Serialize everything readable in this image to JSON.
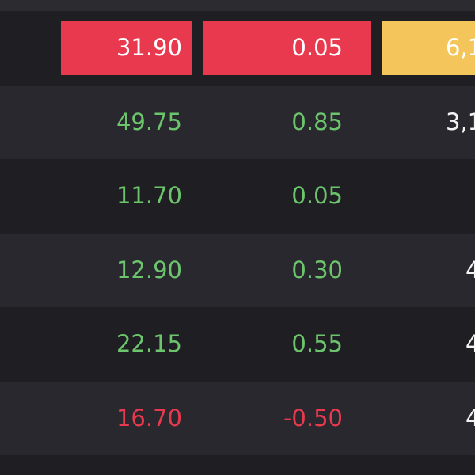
{
  "table": {
    "rows": [
      [
        "31.90",
        "0.05",
        "6,1"
      ],
      [
        "49.75",
        "0.85",
        "3,1"
      ],
      [
        "11.70",
        "0.05",
        null
      ],
      [
        "12.90",
        "0.30",
        "4"
      ],
      [
        "22.15",
        "0.55",
        "4"
      ],
      [
        "16.70",
        "-0.50",
        "4"
      ]
    ]
  }
}
